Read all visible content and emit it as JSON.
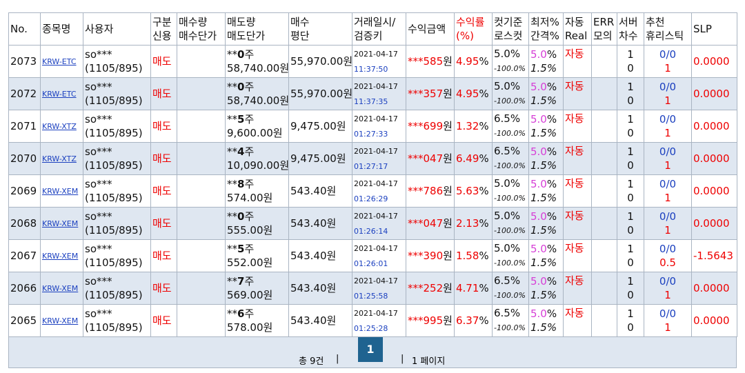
{
  "table": {
    "headers": [
      [
        "No."
      ],
      [
        "종목명"
      ],
      [
        "사용자"
      ],
      [
        "구분",
        "신용"
      ],
      [
        "매수량",
        "매수단가"
      ],
      [
        "매도량",
        "매도단가"
      ],
      [
        "매수",
        "평단"
      ],
      [
        "거래일시/",
        "검증키"
      ],
      [
        "수익금액"
      ],
      [
        "수익률",
        "(%)"
      ],
      [
        "컷기준",
        "로스컷"
      ],
      [
        "최저%",
        "간격%"
      ],
      [
        "자동",
        "Real"
      ],
      [
        "ERR",
        "모의"
      ],
      [
        "서버",
        "차수"
      ],
      [
        "추천",
        "휴리스틱"
      ],
      [
        "SLP"
      ]
    ],
    "rows": [
      {
        "no": "2073",
        "sym": "KRW-ETC",
        "user": "so***",
        "ratio": "(1105/895)",
        "side": "매도",
        "mask": "**",
        "qty": "0",
        "qunit": "주",
        "price": "58,740.00원",
        "avg": "55,970.00원",
        "date": "2021-04-17",
        "time": "11:37:50",
        "profit": "***585",
        "punit": "원",
        "rate": "4.95",
        "runit": "%",
        "cut": "5.0%",
        "loss": "-100.0%",
        "min": "5.0",
        "munit": "%",
        "gap": "1.5%",
        "auto": "자동",
        "s1": "1",
        "s2": "0",
        "rec": "0/0",
        "heur": "1",
        "slp": "0.0000"
      },
      {
        "no": "2072",
        "sym": "KRW-ETC",
        "user": "so***",
        "ratio": "(1105/895)",
        "side": "매도",
        "mask": "**",
        "qty": "0",
        "qunit": "주",
        "price": "58,740.00원",
        "avg": "55,970.00원",
        "date": "2021-04-17",
        "time": "11:37:35",
        "profit": "***357",
        "punit": "원",
        "rate": "4.95",
        "runit": "%",
        "cut": "5.0%",
        "loss": "-100.0%",
        "min": "5.0",
        "munit": "%",
        "gap": "1.5%",
        "auto": "자동",
        "s1": "1",
        "s2": "0",
        "rec": "0/0",
        "heur": "1",
        "slp": "0.0000"
      },
      {
        "no": "2071",
        "sym": "KRW-XTZ",
        "user": "so***",
        "ratio": "(1105/895)",
        "side": "매도",
        "mask": "**",
        "qty": "5",
        "qunit": "주",
        "price": "9,600.00원",
        "avg": "9,475.00원",
        "date": "2021-04-17",
        "time": "01:27:33",
        "profit": "***699",
        "punit": "원",
        "rate": "1.32",
        "runit": "%",
        "cut": "6.5%",
        "loss": "-100.0%",
        "min": "5.0",
        "munit": "%",
        "gap": "1.5%",
        "auto": "자동",
        "s1": "1",
        "s2": "0",
        "rec": "0/0",
        "heur": "1",
        "slp": "0.0000"
      },
      {
        "no": "2070",
        "sym": "KRW-XTZ",
        "user": "so***",
        "ratio": "(1105/895)",
        "side": "매도",
        "mask": "**",
        "qty": "4",
        "qunit": "주",
        "price": "10,090.00원",
        "avg": "9,475.00원",
        "date": "2021-04-17",
        "time": "01:27:17",
        "profit": "***047",
        "punit": "원",
        "rate": "6.49",
        "runit": "%",
        "cut": "6.5%",
        "loss": "-100.0%",
        "min": "5.0",
        "munit": "%",
        "gap": "1.5%",
        "auto": "자동",
        "s1": "1",
        "s2": "0",
        "rec": "0/0",
        "heur": "1",
        "slp": "0.0000"
      },
      {
        "no": "2069",
        "sym": "KRW-XEM",
        "user": "so***",
        "ratio": "(1105/895)",
        "side": "매도",
        "mask": "**",
        "qty": "8",
        "qunit": "주",
        "price": "574.00원",
        "avg": "543.40원",
        "date": "2021-04-17",
        "time": "01:26:29",
        "profit": "***786",
        "punit": "원",
        "rate": "5.63",
        "runit": "%",
        "cut": "5.0%",
        "loss": "-100.0%",
        "min": "5.0",
        "munit": "%",
        "gap": "1.5%",
        "auto": "자동",
        "s1": "1",
        "s2": "0",
        "rec": "0/0",
        "heur": "1",
        "slp": "0.0000"
      },
      {
        "no": "2068",
        "sym": "KRW-XEM",
        "user": "so***",
        "ratio": "(1105/895)",
        "side": "매도",
        "mask": "**",
        "qty": "0",
        "qunit": "주",
        "price": "555.00원",
        "avg": "543.40원",
        "date": "2021-04-17",
        "time": "01:26:14",
        "profit": "***047",
        "punit": "원",
        "rate": "2.13",
        "runit": "%",
        "cut": "5.0%",
        "loss": "-100.0%",
        "min": "5.0",
        "munit": "%",
        "gap": "1.5%",
        "auto": "자동",
        "s1": "1",
        "s2": "0",
        "rec": "0/0",
        "heur": "1",
        "slp": "0.0000"
      },
      {
        "no": "2067",
        "sym": "KRW-XEM",
        "user": "so***",
        "ratio": "(1105/895)",
        "side": "매도",
        "mask": "**",
        "qty": "5",
        "qunit": "주",
        "price": "552.00원",
        "avg": "543.40원",
        "date": "2021-04-17",
        "time": "01:26:01",
        "profit": "***390",
        "punit": "원",
        "rate": "1.58",
        "runit": "%",
        "cut": "5.0%",
        "loss": "-100.0%",
        "min": "5.0",
        "munit": "%",
        "gap": "1.5%",
        "auto": "자동",
        "s1": "1",
        "s2": "0",
        "rec": "0/0",
        "heur": "0.5",
        "slp": "-1.5643"
      },
      {
        "no": "2066",
        "sym": "KRW-XEM",
        "user": "so***",
        "ratio": "(1105/895)",
        "side": "매도",
        "mask": "**",
        "qty": "7",
        "qunit": "주",
        "price": "569.00원",
        "avg": "543.40원",
        "date": "2021-04-17",
        "time": "01:25:58",
        "profit": "***252",
        "punit": "원",
        "rate": "4.71",
        "runit": "%",
        "cut": "6.5%",
        "loss": "-100.0%",
        "min": "5.0",
        "munit": "%",
        "gap": "1.5%",
        "auto": "자동",
        "s1": "1",
        "s2": "0",
        "rec": "0/0",
        "heur": "1",
        "slp": "0.0000"
      },
      {
        "no": "2065",
        "sym": "KRW-XEM",
        "user": "so***",
        "ratio": "(1105/895)",
        "side": "매도",
        "mask": "**",
        "qty": "6",
        "qunit": "주",
        "price": "578.00원",
        "avg": "543.40원",
        "date": "2021-04-17",
        "time": "01:25:28",
        "profit": "***995",
        "punit": "원",
        "rate": "6.37",
        "runit": "%",
        "cut": "6.5%",
        "loss": "-100.0%",
        "min": "5.0",
        "munit": "%",
        "gap": "1.5%",
        "auto": "자동",
        "s1": "1",
        "s2": "0",
        "rec": "0/0",
        "heur": "1",
        "slp": "0.0000"
      }
    ]
  },
  "footer": {
    "total": "총 9건",
    "sep1": "|",
    "page": "1",
    "sep2": "|",
    "pages": "1 페이지"
  }
}
